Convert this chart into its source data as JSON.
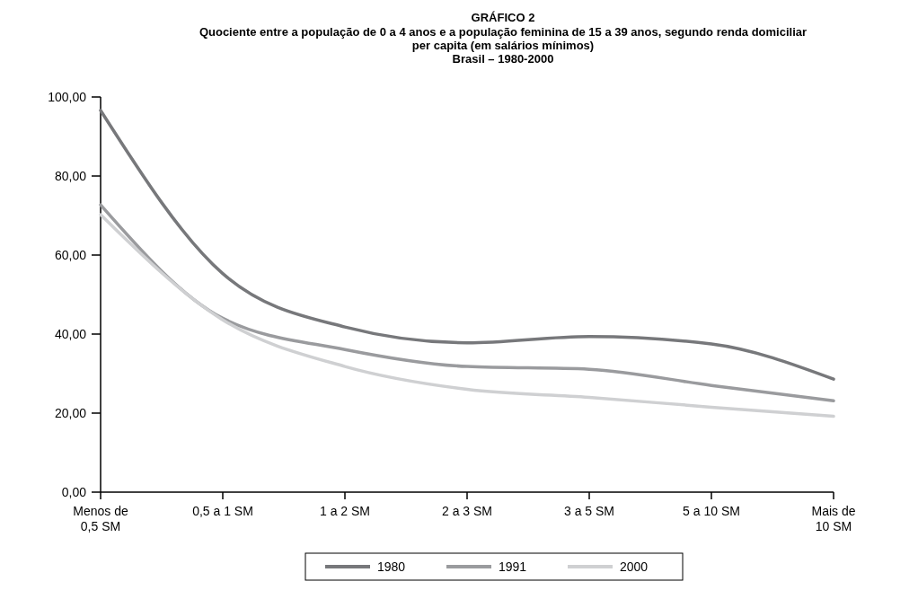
{
  "chart_data": {
    "type": "line",
    "title": "GRÁFICO 2",
    "subtitle": "Quociente entre a população de 0 a 4 anos e a população feminina de 15 a 39 anos, segundo renda domiciliar\nper capita (em salários mínimos)\nBrasil – 1980-2000",
    "categories": [
      "Menos de\n0,5 SM",
      "0,5 a 1 SM",
      "1 a 2 SM",
      "2 a 3 SM",
      "3 a 5 SM",
      "5 a 10 SM",
      "Mais de\n10 SM"
    ],
    "series": [
      {
        "name": "1980",
        "color": "#77787b",
        "values": [
          96.6,
          55.3,
          41.8,
          37.8,
          39.4,
          37.5,
          28.6
        ]
      },
      {
        "name": "1991",
        "color": "#9a9b9e",
        "values": [
          72.7,
          44,
          36.1,
          31.8,
          31.1,
          27,
          23.1
        ]
      },
      {
        "name": "2000",
        "color": "#cfd0d2",
        "values": [
          70.2,
          43.6,
          31.8,
          26,
          24,
          21.5,
          19.2
        ]
      }
    ],
    "ylim": [
      0,
      100
    ],
    "yticks": [
      {
        "value": 0,
        "label": "0,00"
      },
      {
        "value": 20,
        "label": "20,00"
      },
      {
        "value": 40,
        "label": "40,00"
      },
      {
        "value": 60,
        "label": "60,00"
      },
      {
        "value": 80,
        "label": "80,00"
      },
      {
        "value": 100,
        "label": "100,00"
      }
    ],
    "grid": false,
    "legend": "bottom",
    "marker": "none",
    "line_style": "solid"
  }
}
